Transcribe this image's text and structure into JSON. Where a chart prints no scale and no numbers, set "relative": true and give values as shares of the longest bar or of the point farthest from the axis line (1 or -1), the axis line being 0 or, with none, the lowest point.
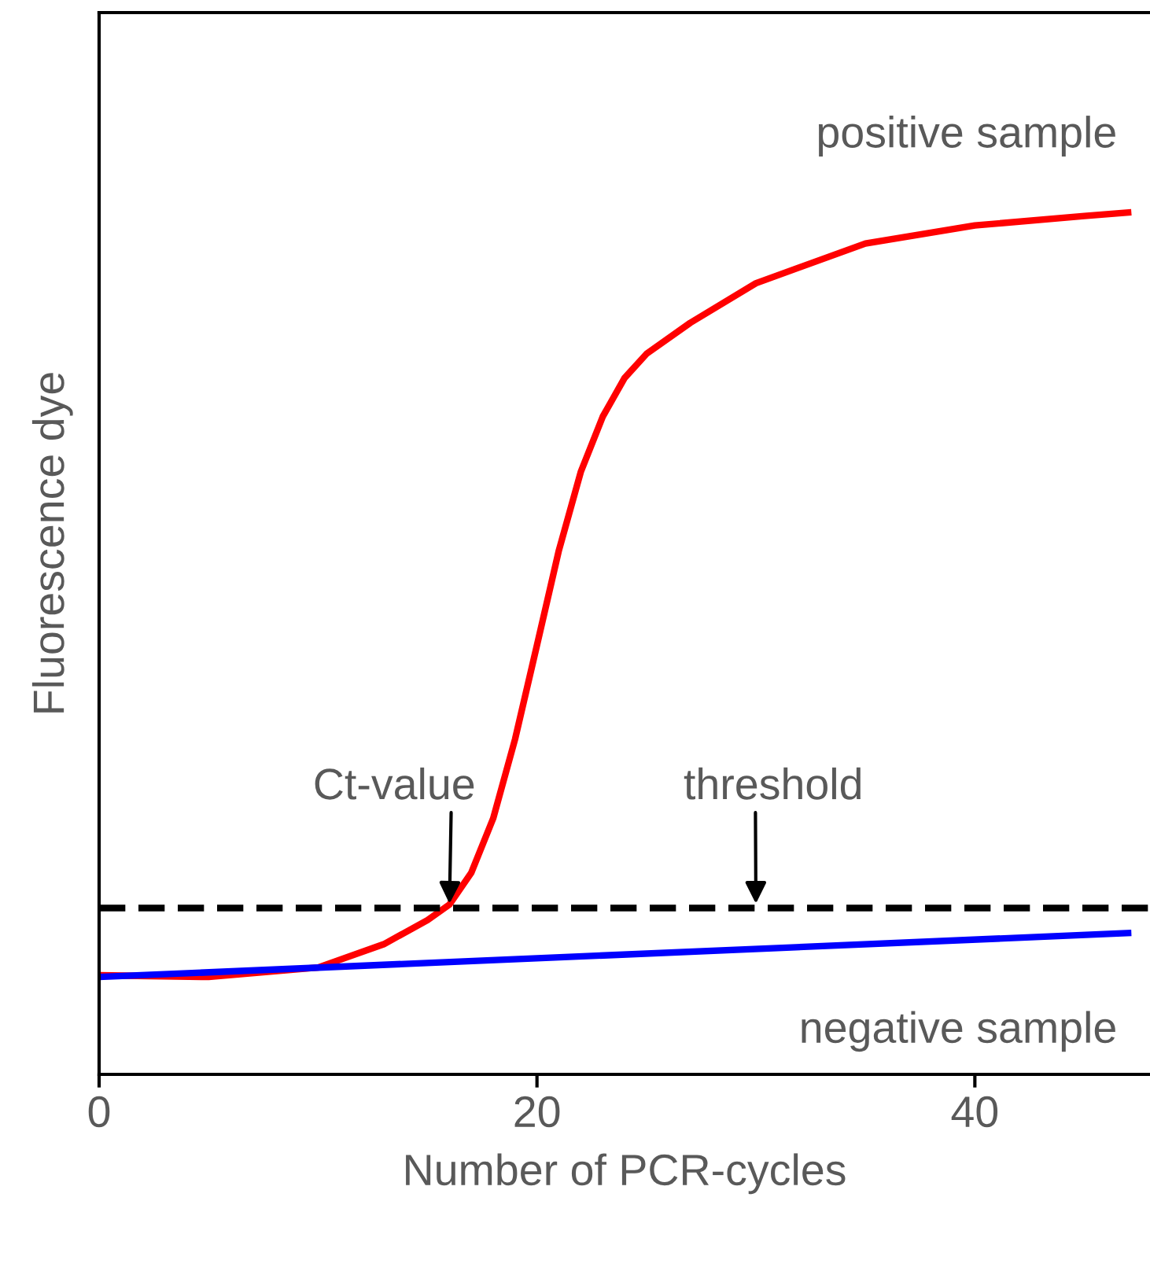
{
  "chart_data": {
    "type": "line",
    "xlabel": "Number of PCR-cycles",
    "ylabel": "Fluorescence dye",
    "relative": true,
    "xlim": [
      0,
      48
    ],
    "xticks": [
      0,
      20,
      40
    ],
    "grid": false,
    "legend": false,
    "marker": "none",
    "line_style": "solid",
    "series": [
      {
        "name": "positive sample",
        "color": "#ff0000",
        "x": [
          0,
          5,
          10,
          13,
          15,
          16,
          17,
          18,
          19,
          20,
          21,
          22,
          23,
          24,
          25,
          27,
          30,
          35,
          40,
          45,
          47
        ],
        "values": [
          0.115,
          0.113,
          0.124,
          0.151,
          0.179,
          0.197,
          0.234,
          0.297,
          0.389,
          0.498,
          0.608,
          0.699,
          0.763,
          0.808,
          0.836,
          0.872,
          0.918,
          0.964,
          0.985,
          0.996,
          1.0
        ]
      },
      {
        "name": "negative sample",
        "color": "#0000ff",
        "x": [
          0,
          47
        ],
        "values": [
          0.113,
          0.164
        ]
      }
    ],
    "ref_lines": [
      {
        "axis": "y",
        "value": 0.193,
        "color": "#000000",
        "line_style": "dashed"
      }
    ],
    "annotations": [
      {
        "text": "Ct-value",
        "x": 16,
        "y": 0.193
      },
      {
        "text": "threshold",
        "x": 30,
        "y": 0.193
      }
    ]
  }
}
